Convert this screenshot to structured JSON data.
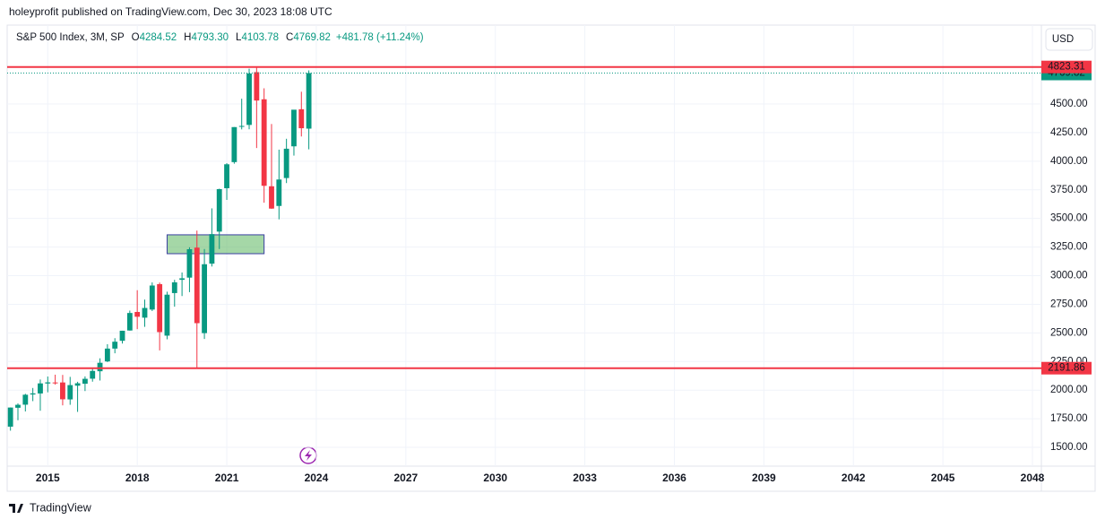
{
  "header": {
    "publisher": "holeyprofit published on TradingView.com, Dec 30, 2023 18:08 UTC"
  },
  "footer": {
    "brand": "TradingView"
  },
  "currency": "USD",
  "legend": {
    "name": "S&P 500 Index, 3M, SP",
    "items": [
      {
        "key": "O",
        "value": "4284.52"
      },
      {
        "key": "H",
        "value": "4793.30"
      },
      {
        "key": "L",
        "value": "4103.78"
      },
      {
        "key": "C",
        "value": "4769.82"
      }
    ],
    "change": "+481.78 (+11.24%)"
  },
  "chart_data": {
    "type": "candlestick",
    "x": [
      2013.75,
      2014,
      2014.25,
      2014.5,
      2014.75,
      2015,
      2015.25,
      2015.5,
      2015.75,
      2016,
      2016.25,
      2016.5,
      2016.75,
      2017,
      2017.25,
      2017.5,
      2017.75,
      2018,
      2018.25,
      2018.5,
      2018.75,
      2019,
      2019.25,
      2019.5,
      2019.75,
      2020,
      2020.25,
      2020.5,
      2020.75,
      2021,
      2021.25,
      2021.5,
      2021.75,
      2022,
      2022.25,
      2022.5,
      2022.75,
      2023,
      2023.25,
      2023.5,
      2023.75
    ],
    "open": [
      1681,
      1846,
      1873,
      1962,
      1971,
      2058,
      2067,
      2067,
      1919,
      2039,
      2056,
      2100,
      2165,
      2251,
      2363,
      2431,
      2521,
      2683,
      2633,
      2704,
      2926,
      2476,
      2848,
      2964,
      2983,
      3245,
      2498,
      3105,
      3385,
      3764,
      3992,
      4301,
      4317,
      4778,
      4541,
      3781,
      3609,
      3853,
      4130,
      4454,
      4284.52
    ],
    "high": [
      1849,
      1884,
      1968,
      2019,
      2093,
      2119,
      2135,
      2133,
      2116,
      2073,
      2120,
      2194,
      2278,
      2401,
      2454,
      2519,
      2695,
      2873,
      2791,
      2941,
      2940,
      2860,
      2964,
      3028,
      3248,
      3394,
      3233,
      3588,
      3760,
      3983,
      4298,
      4546,
      4808,
      4818,
      4637,
      4325,
      4101,
      4196,
      4449,
      4607,
      4793.3
    ],
    "low": [
      1646,
      1737,
      1814,
      1904,
      1820,
      1981,
      2048,
      1867,
      1872,
      1810,
      1992,
      2074,
      2084,
      2245,
      2322,
      2407,
      2520,
      2533,
      2553,
      2691,
      2347,
      2444,
      2729,
      2822,
      2856,
      2192,
      2447,
      3080,
      3233,
      3662,
      3978,
      4278,
      4279,
      4115,
      3637,
      3584,
      3492,
      3809,
      4049,
      4216,
      4103.78
    ],
    "close": [
      1848,
      1872,
      1960,
      1972,
      2059,
      2068,
      2063,
      1920,
      2044,
      2060,
      2099,
      2168,
      2239,
      2363,
      2423,
      2519,
      2674,
      2641,
      2718,
      2914,
      2507,
      2834,
      2942,
      2977,
      3231,
      2585,
      3100,
      3363,
      3756,
      3973,
      4298,
      4308,
      4766,
      4530,
      3785,
      3586,
      3840,
      4109,
      4450,
      4288,
      4769.82
    ],
    "up_color": "#089981",
    "down_color": "#f23645",
    "xlim": [
      2013.7,
      2048.3
    ],
    "xticks": [
      2015,
      2018,
      2021,
      2024,
      2027,
      2030,
      2033,
      2036,
      2039,
      2042,
      2045,
      2048
    ],
    "ylim": [
      1336,
      5189
    ],
    "yticks": [
      {
        "value": 1500,
        "label": "1500.00"
      },
      {
        "value": 1750,
        "label": "1750.00"
      },
      {
        "value": 2000,
        "label": "2000.00"
      },
      {
        "value": 2250,
        "label": "2250.00"
      },
      {
        "value": 2500,
        "label": "2500.00"
      },
      {
        "value": 2750,
        "label": "2750.00"
      },
      {
        "value": 3000,
        "label": "3000.00"
      },
      {
        "value": 3250,
        "label": "3250.00"
      },
      {
        "value": 3500,
        "label": "3500.00"
      },
      {
        "value": 3750,
        "label": "3750.00"
      },
      {
        "value": 4000,
        "label": "4000.00"
      },
      {
        "value": 4250,
        "label": "4250.00"
      },
      {
        "value": 4500,
        "label": "4500.00"
      }
    ],
    "grid": true,
    "levels": [
      4823.31,
      2191.86
    ],
    "level_color": "#f23645",
    "last_price": 4769.82,
    "zone": {
      "x": [
        2019.0,
        2022.25
      ],
      "y": [
        3192,
        3357
      ]
    }
  }
}
